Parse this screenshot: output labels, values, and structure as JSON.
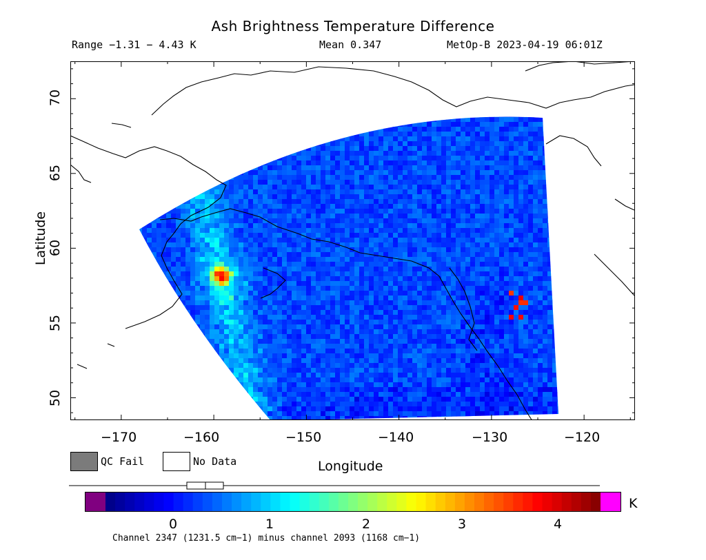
{
  "title": "Ash Brightness Temperature Difference",
  "header": {
    "range": "Range −1.31 − 4.43 K",
    "mean": "Mean 0.347",
    "satellite": "MetOp-B 2023-04-19 06:01Z"
  },
  "axes": {
    "xlabel": "Longitude",
    "ylabel": "Latitude",
    "xticks": [
      "−170",
      "−160",
      "−150",
      "−140",
      "−130",
      "−120"
    ],
    "yticks": [
      "50",
      "55",
      "60",
      "65",
      "70"
    ],
    "lon_range": [
      -175.5,
      -114.5
    ],
    "lat_range": [
      48.5,
      72.5
    ]
  },
  "legend": {
    "qc_fail": "QC Fail",
    "no_data": "No Data",
    "qc_fail_color": "#7b7b7b",
    "no_data_color": "#ffffff"
  },
  "colorbar": {
    "unit": "K",
    "ticks": [
      "0",
      "1",
      "2",
      "3",
      "4"
    ],
    "tick_values": [
      0,
      1,
      2,
      3,
      4
    ],
    "vmin": -0.7,
    "vmax": 4.4,
    "under_color": "#800080",
    "over_color": "#ff00ff",
    "caption": "Channel 2347 (1231.5 cm−1) minus channel 2093 (1168 cm−1)"
  },
  "map": {
    "field_mean_k": 0.347,
    "ash_signal_lon": -159.5,
    "ash_signal_lat": 58.3,
    "secondary_signal_lon": -128,
    "secondary_signal_lat": 56.2
  }
}
